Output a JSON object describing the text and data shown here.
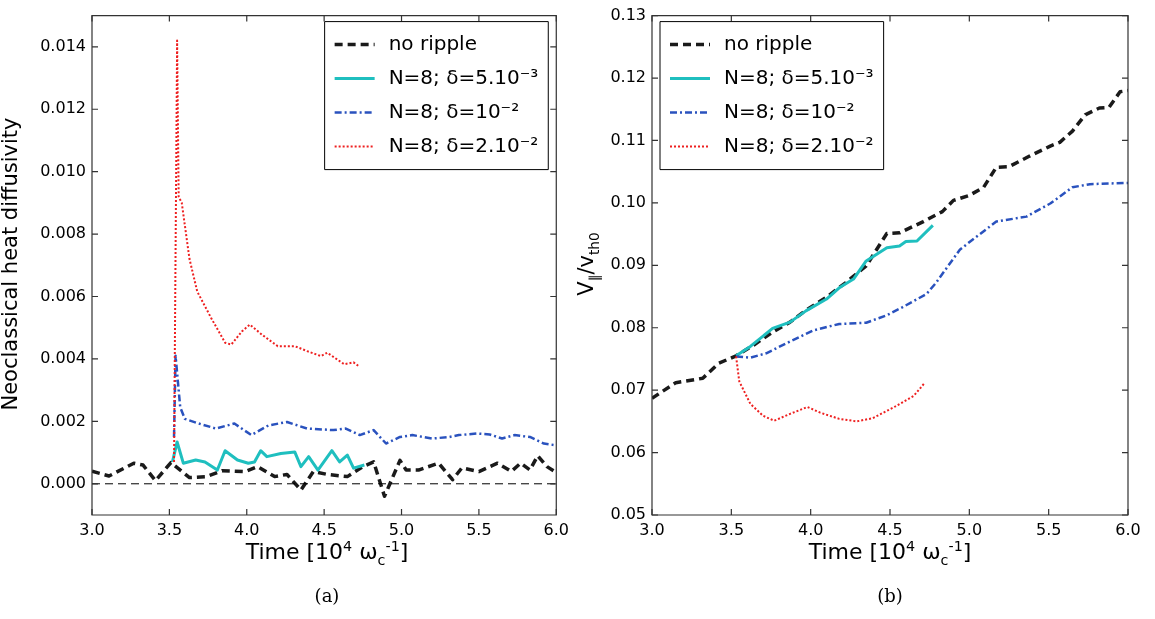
{
  "chart_data": [
    {
      "type": "line",
      "ylabel": "Neoclassical heat diffusivity",
      "xlabel": "Time [10$^{4}$  ω$_{c}$$^{-1}$]",
      "annotations": [
        "(a)"
      ],
      "xlim": [
        3.0,
        6.0
      ],
      "ylim": [
        -0.001,
        0.015
      ],
      "xticks": [
        {
          "value": 3,
          "label": "3.0"
        },
        {
          "value": 3.5,
          "label": "3.5"
        },
        {
          "value": 4,
          "label": "4.0"
        },
        {
          "value": 4.5,
          "label": "4.5"
        },
        {
          "value": 5,
          "label": "5.0"
        },
        {
          "value": 5.5,
          "label": "5.5"
        },
        {
          "value": 6,
          "label": "6.0"
        }
      ],
      "yticks": [
        {
          "value": 0,
          "label": "0.000"
        },
        {
          "value": 0.002,
          "label": "0.002"
        },
        {
          "value": 0.004,
          "label": "0.004"
        },
        {
          "value": 0.006,
          "label": "0.006"
        },
        {
          "value": 0.008,
          "label": "0.008"
        },
        {
          "value": 0.01,
          "label": "0.010"
        },
        {
          "value": 0.012,
          "label": "0.012"
        },
        {
          "value": 0.014,
          "label": "0.014"
        }
      ],
      "grid": false,
      "legend": "top right",
      "marker": "none",
      "ref_lines": [
        {
          "axis": "y",
          "value": 0,
          "label": null,
          "color": "#000000",
          "line_style": "dashed"
        }
      ],
      "series": [
        {
          "name": "no ripple",
          "color": "#1a1a1a",
          "line_style": "dashed",
          "x": [
            3.0,
            3.11,
            3.27,
            3.33,
            3.41,
            3.51,
            3.63,
            3.74,
            3.84,
            3.99,
            4.07,
            4.18,
            4.26,
            4.35,
            4.43,
            4.52,
            4.65,
            4.75,
            4.82,
            4.89,
            4.99,
            5.03,
            5.11,
            5.24,
            5.33,
            5.39,
            5.5,
            5.62,
            5.71,
            5.77,
            5.83,
            5.88,
            5.94,
            5.99
          ],
          "values": [
            0.0004,
            0.00025,
            0.00066,
            0.0006,
            0.0001,
            0.00068,
            0.0002,
            0.00023,
            0.00042,
            0.00039,
            0.00055,
            0.00023,
            0.0003,
            -0.0002,
            0.00039,
            0.0003,
            0.00023,
            0.00055,
            0.0007,
            -0.0004,
            0.00075,
            0.00044,
            0.00044,
            0.00066,
            0.00013,
            0.00051,
            0.00039,
            0.00066,
            0.0004,
            0.00066,
            0.00044,
            0.0009,
            0.00055,
            0.00039
          ]
        },
        {
          "name": "N=8; δ=5.10⁻³",
          "color": "#1fbfbf",
          "line_style": "solid",
          "x": [
            3.52,
            3.55,
            3.59,
            3.67,
            3.73,
            3.81,
            3.86,
            3.94,
            4.01,
            4.05,
            4.09,
            4.13,
            4.22,
            4.31,
            4.35,
            4.4,
            4.46,
            4.55,
            4.6,
            4.65,
            4.69,
            4.76
          ],
          "values": [
            0.0007,
            0.00134,
            0.00066,
            0.00076,
            0.0007,
            0.00044,
            0.00106,
            0.00076,
            0.00066,
            0.0007,
            0.00106,
            0.00087,
            0.00097,
            0.00102,
            0.00055,
            0.00087,
            0.00044,
            0.00106,
            0.0007,
            0.00092,
            0.0005,
            0.0006
          ]
        },
        {
          "name": "N=8; δ=10⁻²",
          "color": "#2a52be",
          "line_style": "dashdot",
          "x": [
            3.53,
            3.54,
            3.57,
            3.6,
            3.69,
            3.8,
            3.92,
            4.03,
            4.14,
            4.26,
            4.39,
            4.56,
            4.64,
            4.73,
            4.82,
            4.9,
            4.99,
            5.07,
            5.2,
            5.31,
            5.37,
            5.49,
            5.57,
            5.65,
            5.73,
            5.83,
            5.92,
            5.99
          ],
          "values": [
            0.0015,
            0.0041,
            0.00245,
            0.00208,
            0.00193,
            0.00177,
            0.00193,
            0.00156,
            0.00187,
            0.00198,
            0.00177,
            0.00172,
            0.00177,
            0.00156,
            0.00172,
            0.00129,
            0.0015,
            0.00156,
            0.00145,
            0.0015,
            0.00156,
            0.00161,
            0.00158,
            0.00145,
            0.00156,
            0.0015,
            0.00129,
            0.00124
          ]
        },
        {
          "name": "N=8; δ=2.10⁻²",
          "color": "#ee2020",
          "line_style": "dotted",
          "x": [
            3.53,
            3.55,
            3.56,
            3.58,
            3.63,
            3.68,
            3.77,
            3.86,
            3.9,
            3.97,
            4.02,
            4.1,
            4.2,
            4.31,
            4.39,
            4.48,
            4.52,
            4.63,
            4.69,
            4.72
          ],
          "values": [
            0.0007,
            0.0142,
            0.0092,
            0.009,
            0.0072,
            0.00616,
            0.00531,
            0.00452,
            0.00446,
            0.00489,
            0.0051,
            0.00477,
            0.00441,
            0.00441,
            0.00425,
            0.00409,
            0.0042,
            0.00383,
            0.00389,
            0.00378
          ]
        }
      ]
    },
    {
      "type": "line",
      "ylabel": "V$_{∥}$/v$_{th0}$",
      "xlabel": "Time [10$^{4}$  ω$_{c}$$^{-1}$]",
      "annotations": [
        "(b)"
      ],
      "xlim": [
        3.0,
        6.0
      ],
      "ylim": [
        0.05,
        0.13
      ],
      "xticks": [
        {
          "value": 3,
          "label": "3.0"
        },
        {
          "value": 3.5,
          "label": "3.5"
        },
        {
          "value": 4,
          "label": "4.0"
        },
        {
          "value": 4.5,
          "label": "4.5"
        },
        {
          "value": 5,
          "label": "5.0"
        },
        {
          "value": 5.5,
          "label": "5.5"
        },
        {
          "value": 6,
          "label": "6.0"
        }
      ],
      "yticks": [
        0.05,
        0.06,
        0.07,
        0.08,
        0.09,
        {
          "value": 0.1,
          "label": "0.10"
        },
        0.11,
        0.12,
        0.13
      ],
      "grid": false,
      "legend": "top left",
      "marker": "none",
      "series": [
        {
          "name": "no ripple",
          "color": "#1a1a1a",
          "line_style": "dashed",
          "x": [
            3.0,
            3.15,
            3.32,
            3.42,
            3.53,
            3.64,
            3.76,
            3.87,
            3.97,
            4.1,
            4.22,
            4.35,
            4.48,
            4.56,
            4.71,
            4.83,
            4.9,
            5.0,
            5.09,
            5.17,
            5.25,
            5.38,
            5.51,
            5.57,
            5.65,
            5.73,
            5.82,
            5.88,
            5.95,
            6.0
          ],
          "values": [
            0.0687,
            0.0712,
            0.0719,
            0.0743,
            0.0755,
            0.0772,
            0.0793,
            0.0809,
            0.0828,
            0.0849,
            0.0872,
            0.0899,
            0.0951,
            0.0952,
            0.097,
            0.0986,
            0.1004,
            0.1012,
            0.1025,
            0.1057,
            0.1058,
            0.1075,
            0.1091,
            0.1097,
            0.1115,
            0.1141,
            0.1152,
            0.1153,
            0.1178,
            0.118
          ]
        },
        {
          "name": "N=8; δ=5.10⁻³",
          "color": "#1fbfbf",
          "line_style": "solid",
          "x": [
            3.53,
            3.62,
            3.76,
            3.87,
            3.97,
            4.1,
            4.18,
            4.27,
            4.35,
            4.48,
            4.56,
            4.6,
            4.67,
            4.77
          ],
          "values": [
            0.0755,
            0.077,
            0.0799,
            0.0809,
            0.0827,
            0.0846,
            0.0864,
            0.0878,
            0.0907,
            0.0928,
            0.0931,
            0.0938,
            0.0939,
            0.0964
          ]
        },
        {
          "name": "N=8; δ=10⁻²",
          "color": "#2a52be",
          "line_style": "dashdot",
          "x": [
            3.53,
            3.62,
            3.72,
            3.87,
            4.02,
            4.18,
            4.35,
            4.48,
            4.58,
            4.73,
            4.79,
            4.94,
            5.02,
            5.17,
            5.36,
            5.51,
            5.65,
            5.76,
            5.88,
            6.0
          ],
          "values": [
            0.0754,
            0.0752,
            0.0759,
            0.0778,
            0.0796,
            0.0806,
            0.0808,
            0.082,
            0.0833,
            0.0854,
            0.0872,
            0.0925,
            0.0941,
            0.097,
            0.0978,
            0.0999,
            0.1025,
            0.103,
            0.1031,
            0.1032
          ]
        },
        {
          "name": "N=8; δ=2.10⁻²",
          "color": "#ee2020",
          "line_style": "dotted",
          "x": [
            3.53,
            3.55,
            3.62,
            3.7,
            3.77,
            3.87,
            3.98,
            4.06,
            4.18,
            4.29,
            4.39,
            4.52,
            4.65,
            4.72
          ],
          "values": [
            0.0754,
            0.0714,
            0.0678,
            0.0659,
            0.0651,
            0.0662,
            0.0673,
            0.0664,
            0.0654,
            0.065,
            0.0655,
            0.0672,
            0.0691,
            0.0712
          ]
        }
      ]
    }
  ]
}
